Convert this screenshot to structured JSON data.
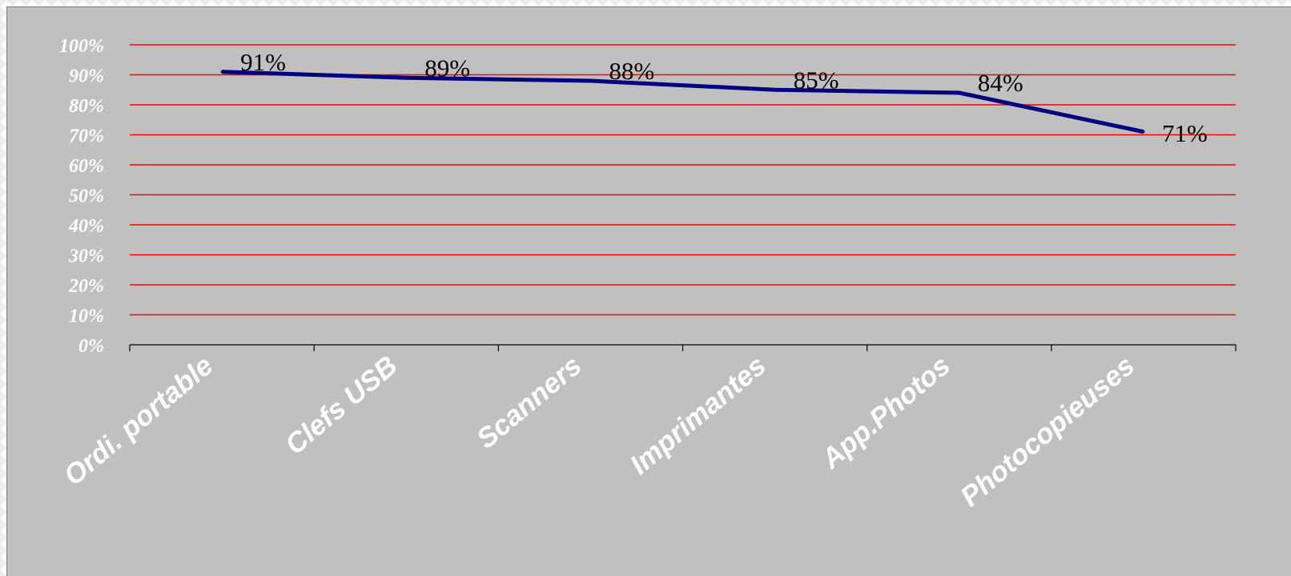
{
  "chart_data": {
    "type": "line",
    "title": "",
    "xlabel": "",
    "ylabel": "",
    "categories": [
      "Ordi. portable",
      "Clefs USB",
      "Scanners",
      "Imprimantes",
      "App.Photos",
      "Photocopieuses"
    ],
    "series": [
      {
        "values": [
          91,
          89,
          88,
          85,
          84,
          71
        ],
        "labels": [
          "91%",
          "89%",
          "88%",
          "85%",
          "84%",
          "71%"
        ]
      }
    ],
    "ylim": [
      0,
      100
    ],
    "yticks": [
      0,
      10,
      20,
      30,
      40,
      50,
      60,
      70,
      80,
      90,
      100
    ],
    "ytick_labels": [
      "0%",
      "10%",
      "20%",
      "30%",
      "40%",
      "50%",
      "60%",
      "70%",
      "80%",
      "90%",
      "100%"
    ],
    "grid": true,
    "legend": "none",
    "colors": {
      "background": "#c0c0c0",
      "gridline": "#ff0000",
      "line": "#000080",
      "axis": "#000000",
      "tick_label": "#ffffff",
      "data_label": "#000000"
    }
  }
}
